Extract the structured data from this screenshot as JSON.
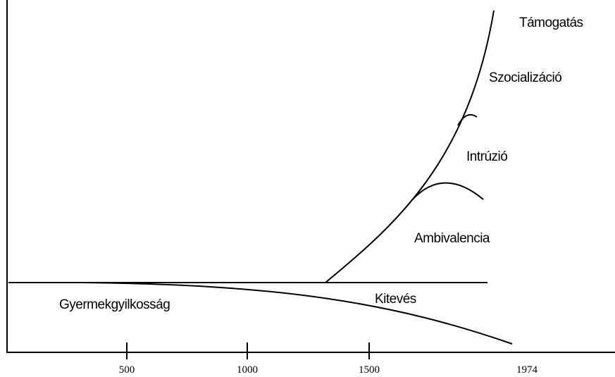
{
  "labels": [
    "Támogatás",
    "Szocializáció",
    "Intrúzió",
    "Ambivalencia",
    "Kitevés",
    "Gyermekgyilkosság"
  ],
  "axis": {
    "ticks": [
      "500",
      "1000",
      "1500",
      "1974"
    ]
  }
}
